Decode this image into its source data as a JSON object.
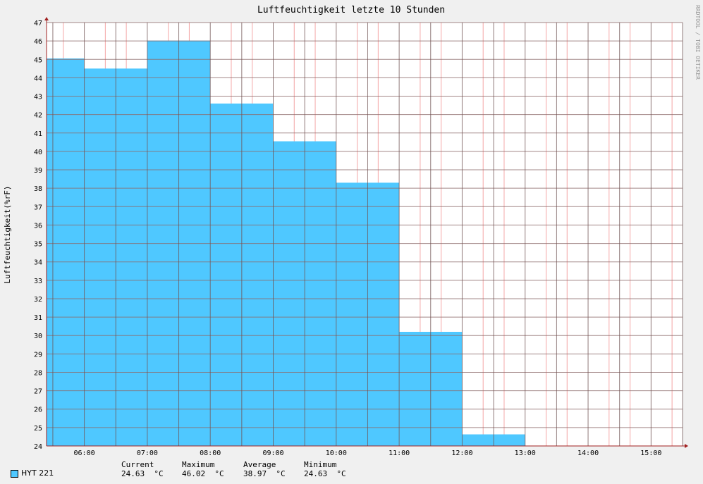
{
  "chart_data": {
    "type": "area",
    "title": "Luftfeuchtigkeit letzte 10 Stunden",
    "ylabel": "Luftfeuchtigkeit(%rF)",
    "xlabel": "",
    "watermark": "RRDTOOL / TOBI OETIKER",
    "ylim": [
      24,
      47
    ],
    "yticks": [
      24,
      25,
      26,
      27,
      28,
      29,
      30,
      31,
      32,
      33,
      34,
      35,
      36,
      37,
      38,
      39,
      40,
      41,
      42,
      43,
      44,
      45,
      46,
      47
    ],
    "x_ticks": [
      "06:00",
      "07:00",
      "08:00",
      "09:00",
      "10:00",
      "11:00",
      "12:00",
      "13:00",
      "14:00",
      "15:00"
    ],
    "x_range_hours": [
      5.4,
      15.5
    ],
    "series": [
      {
        "name": "HYT 221",
        "color": "#4FC8FF",
        "steps": [
          {
            "start": 5.4,
            "end": 6.0,
            "value": 45.05
          },
          {
            "start": 6.0,
            "end": 7.0,
            "value": 44.5
          },
          {
            "start": 7.0,
            "end": 8.0,
            "value": 46.02
          },
          {
            "start": 8.0,
            "end": 9.0,
            "value": 42.6
          },
          {
            "start": 9.0,
            "end": 10.0,
            "value": 40.55
          },
          {
            "start": 10.0,
            "end": 11.0,
            "value": 38.3
          },
          {
            "start": 11.0,
            "end": 12.0,
            "value": 30.2
          },
          {
            "start": 12.0,
            "end": 13.0,
            "value": 24.63
          }
        ]
      }
    ],
    "legend": {
      "series_name": "HYT 221",
      "labels": {
        "current": "Current",
        "maximum": "Maximum",
        "average": "Average",
        "minimum": "Minimum"
      },
      "values": {
        "current": "24.63  °C",
        "maximum": "46.02  °C",
        "average": "38.97  °C",
        "minimum": "24.63  °C"
      }
    },
    "grid": true,
    "legend_placement": "bottom-left"
  }
}
